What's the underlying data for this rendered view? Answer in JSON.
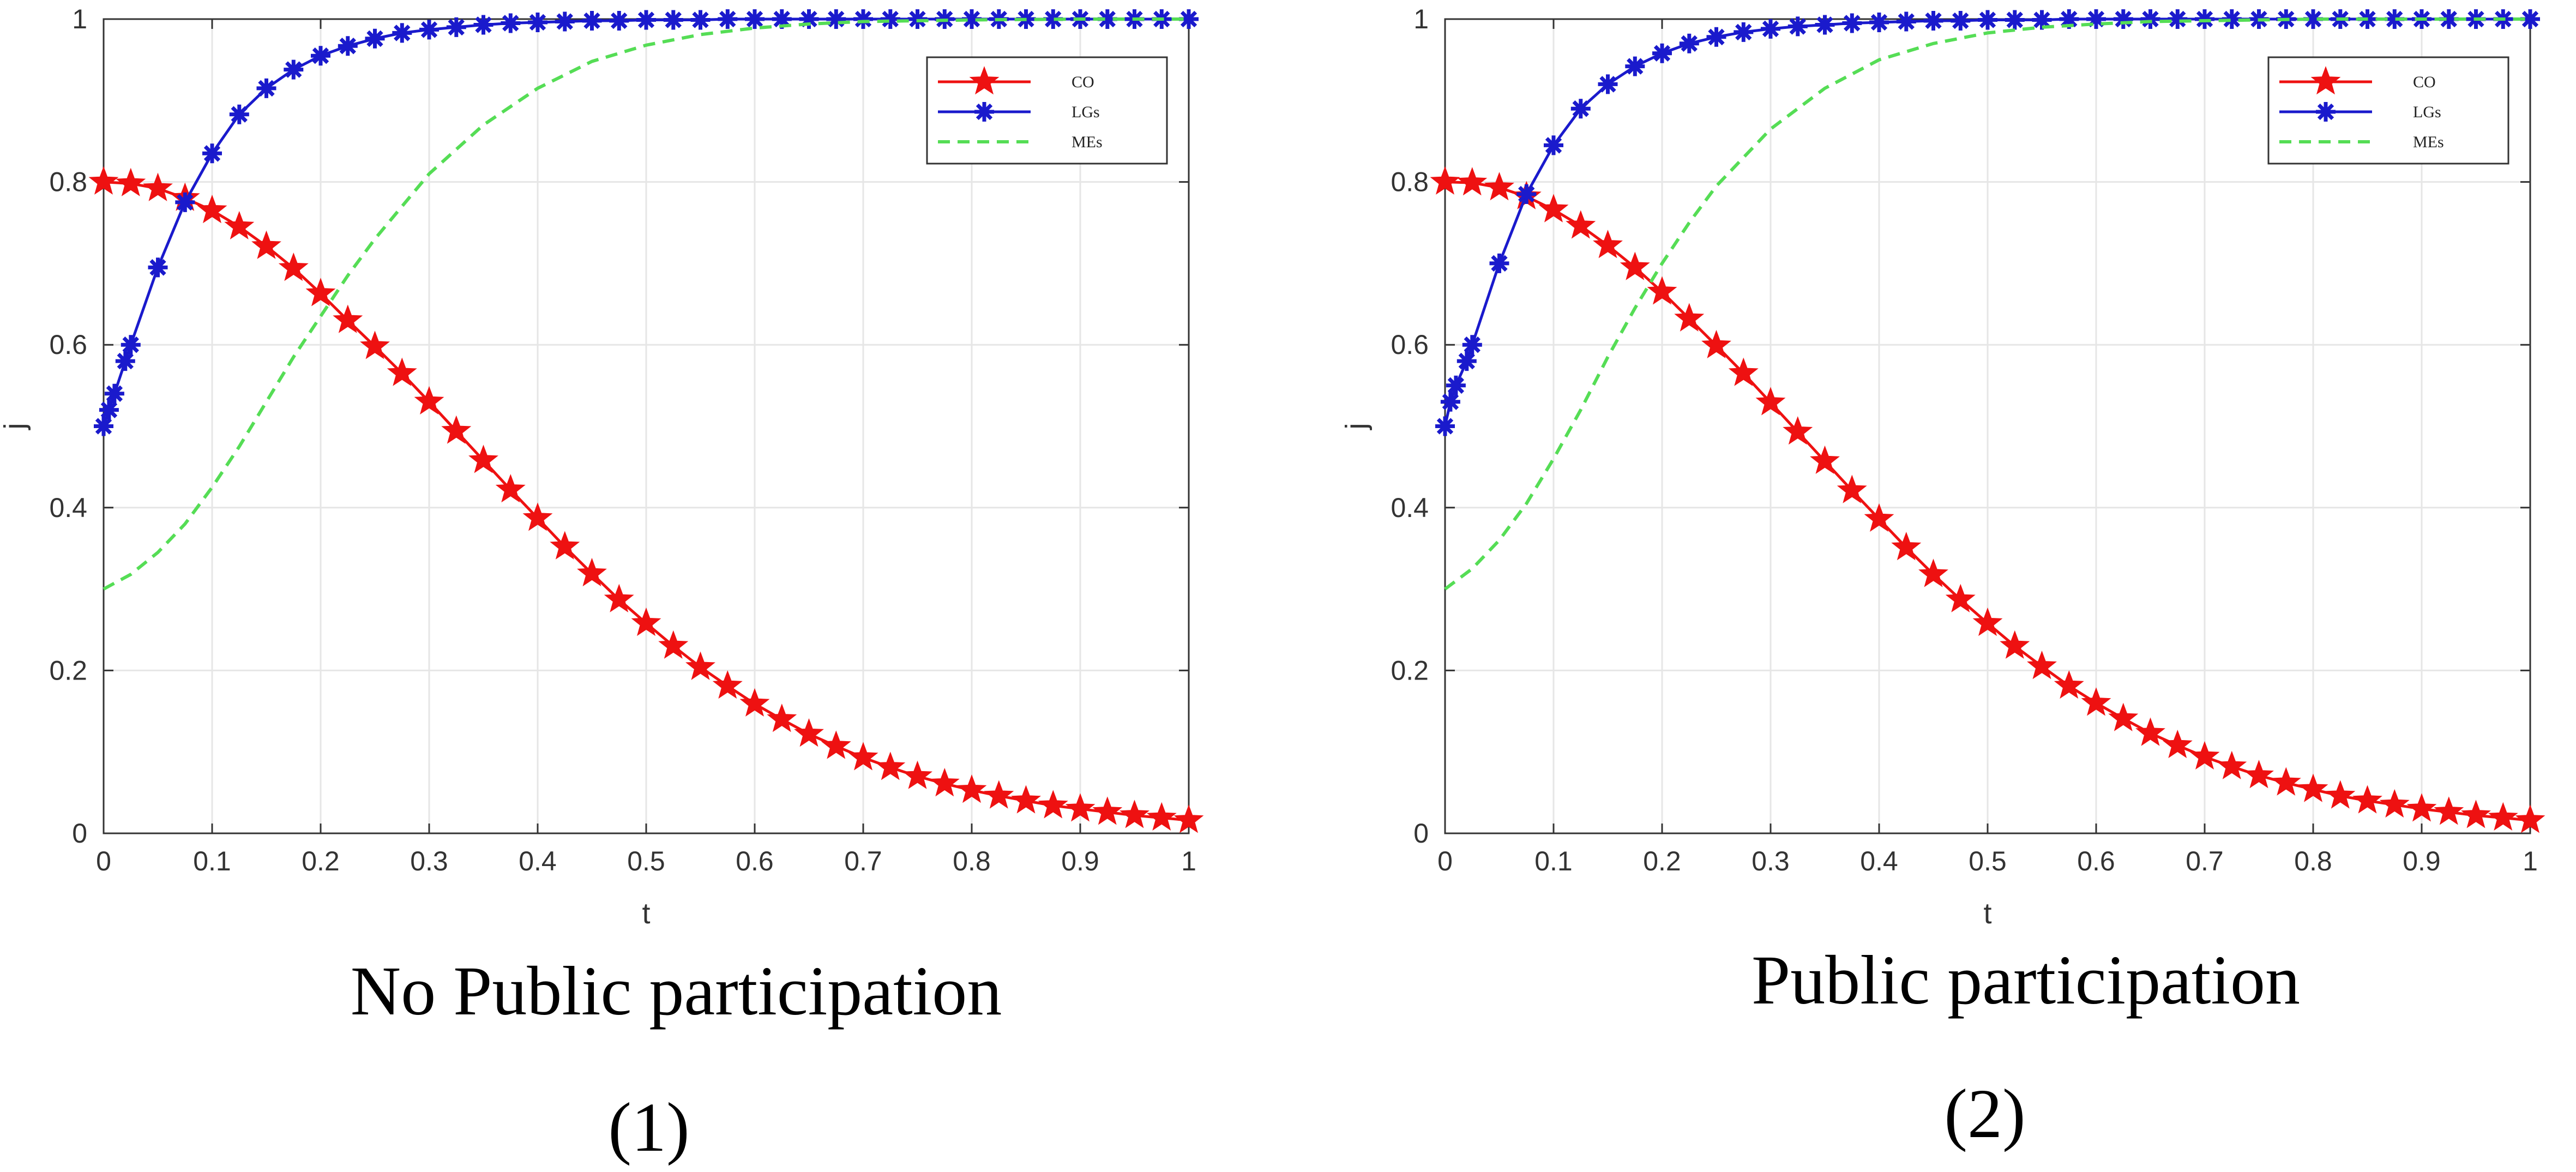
{
  "colors": {
    "CO": "#ee1111",
    "LGs": "#1a1acc",
    "MEs": "#55dd55"
  },
  "chart_data": [
    {
      "type": "line",
      "caption": "No Public participation",
      "number": "(1)",
      "xlabel": "t",
      "ylabel": "j",
      "xlim": [
        0,
        1
      ],
      "ylim": [
        0,
        1
      ],
      "xticks": [
        "0",
        "0.1",
        "0.2",
        "0.3",
        "0.4",
        "0.5",
        "0.6",
        "0.7",
        "0.8",
        "0.9",
        "1"
      ],
      "yticks": [
        "0",
        "0.2",
        "0.4",
        "0.6",
        "0.8",
        "1"
      ],
      "grid": true,
      "legend_position": "top-right",
      "series": [
        {
          "name": "CO",
          "style": "solid-star",
          "color": "#ee1111",
          "x": [
            0,
            0.025,
            0.05,
            0.075,
            0.1,
            0.125,
            0.15,
            0.175,
            0.2,
            0.225,
            0.25,
            0.275,
            0.3,
            0.325,
            0.35,
            0.375,
            0.4,
            0.425,
            0.45,
            0.475,
            0.5,
            0.525,
            0.55,
            0.575,
            0.6,
            0.625,
            0.65,
            0.675,
            0.7,
            0.725,
            0.75,
            0.775,
            0.8,
            0.825,
            0.85,
            0.875,
            0.9,
            0.925,
            0.95,
            0.975,
            1.0
          ],
          "values": [
            0.8,
            0.798,
            0.792,
            0.78,
            0.765,
            0.745,
            0.721,
            0.694,
            0.663,
            0.63,
            0.598,
            0.565,
            0.53,
            0.494,
            0.458,
            0.422,
            0.387,
            0.352,
            0.319,
            0.287,
            0.258,
            0.23,
            0.204,
            0.181,
            0.159,
            0.14,
            0.122,
            0.107,
            0.093,
            0.081,
            0.07,
            0.061,
            0.053,
            0.046,
            0.04,
            0.034,
            0.03,
            0.026,
            0.022,
            0.019,
            0.016
          ]
        },
        {
          "name": "LGs",
          "style": "solid-asterisk",
          "color": "#1a1acc",
          "x": [
            0,
            0.005,
            0.01,
            0.02,
            0.025,
            0.05,
            0.075,
            0.1,
            0.125,
            0.15,
            0.175,
            0.2,
            0.225,
            0.25,
            0.275,
            0.3,
            0.325,
            0.35,
            0.375,
            0.4,
            0.425,
            0.45,
            0.475,
            0.5,
            0.525,
            0.55,
            0.575,
            0.6,
            0.625,
            0.65,
            0.675,
            0.7,
            0.725,
            0.75,
            0.775,
            0.8,
            0.825,
            0.85,
            0.875,
            0.9,
            0.925,
            0.95,
            0.975,
            1.0
          ],
          "values": [
            0.5,
            0.52,
            0.54,
            0.58,
            0.6,
            0.695,
            0.775,
            0.835,
            0.883,
            0.915,
            0.938,
            0.955,
            0.967,
            0.976,
            0.983,
            0.987,
            0.99,
            0.993,
            0.995,
            0.996,
            0.997,
            0.998,
            0.998,
            0.999,
            0.999,
            0.999,
            1.0,
            1.0,
            1.0,
            1.0,
            1.0,
            1.0,
            1.0,
            1.0,
            1.0,
            1.0,
            1.0,
            1.0,
            1.0,
            1.0,
            1.0,
            1.0,
            1.0,
            1.0
          ]
        },
        {
          "name": "MEs",
          "style": "dashed",
          "color": "#55dd55",
          "x": [
            0,
            0.025,
            0.05,
            0.075,
            0.1,
            0.125,
            0.15,
            0.175,
            0.2,
            0.225,
            0.25,
            0.3,
            0.35,
            0.4,
            0.45,
            0.5,
            0.55,
            0.6,
            0.65,
            0.7,
            0.75,
            0.8,
            0.9,
            1.0
          ],
          "values": [
            0.3,
            0.318,
            0.345,
            0.38,
            0.425,
            0.475,
            0.53,
            0.585,
            0.635,
            0.685,
            0.73,
            0.81,
            0.87,
            0.915,
            0.948,
            0.968,
            0.981,
            0.989,
            0.994,
            0.997,
            0.998,
            0.999,
            1.0,
            1.0
          ]
        }
      ]
    },
    {
      "type": "line",
      "caption": "Public participation",
      "number": "(2)",
      "xlabel": "t",
      "ylabel": "j",
      "xlim": [
        0,
        1
      ],
      "ylim": [
        0,
        1
      ],
      "xticks": [
        "0",
        "0.1",
        "0.2",
        "0.3",
        "0.4",
        "0.5",
        "0.6",
        "0.7",
        "0.8",
        "0.9",
        "1"
      ],
      "yticks": [
        "0",
        "0.2",
        "0.4",
        "0.6",
        "0.8",
        "1"
      ],
      "grid": true,
      "legend_position": "top-right",
      "series": [
        {
          "name": "CO",
          "style": "solid-star",
          "color": "#ee1111",
          "x": [
            0,
            0.025,
            0.05,
            0.075,
            0.1,
            0.125,
            0.15,
            0.175,
            0.2,
            0.225,
            0.25,
            0.275,
            0.3,
            0.325,
            0.35,
            0.375,
            0.4,
            0.425,
            0.45,
            0.475,
            0.5,
            0.525,
            0.55,
            0.575,
            0.6,
            0.625,
            0.65,
            0.675,
            0.7,
            0.725,
            0.75,
            0.775,
            0.8,
            0.825,
            0.85,
            0.875,
            0.9,
            0.925,
            0.95,
            0.975,
            1.0
          ],
          "values": [
            0.8,
            0.799,
            0.793,
            0.782,
            0.766,
            0.746,
            0.722,
            0.695,
            0.665,
            0.632,
            0.599,
            0.565,
            0.529,
            0.493,
            0.457,
            0.421,
            0.386,
            0.351,
            0.318,
            0.287,
            0.258,
            0.23,
            0.205,
            0.181,
            0.16,
            0.141,
            0.123,
            0.108,
            0.094,
            0.082,
            0.071,
            0.062,
            0.054,
            0.046,
            0.04,
            0.035,
            0.03,
            0.026,
            0.022,
            0.019,
            0.016
          ]
        },
        {
          "name": "LGs",
          "style": "solid-asterisk",
          "color": "#1a1acc",
          "x": [
            0,
            0.005,
            0.01,
            0.02,
            0.025,
            0.05,
            0.075,
            0.1,
            0.125,
            0.15,
            0.175,
            0.2,
            0.225,
            0.25,
            0.275,
            0.3,
            0.325,
            0.35,
            0.375,
            0.4,
            0.425,
            0.45,
            0.475,
            0.5,
            0.525,
            0.55,
            0.575,
            0.6,
            0.625,
            0.65,
            0.675,
            0.7,
            0.725,
            0.75,
            0.775,
            0.8,
            0.825,
            0.85,
            0.875,
            0.9,
            0.925,
            0.95,
            0.975,
            1.0
          ],
          "values": [
            0.5,
            0.53,
            0.55,
            0.58,
            0.6,
            0.7,
            0.785,
            0.845,
            0.89,
            0.92,
            0.942,
            0.958,
            0.97,
            0.978,
            0.984,
            0.988,
            0.991,
            0.993,
            0.995,
            0.996,
            0.997,
            0.998,
            0.998,
            0.999,
            0.999,
            0.999,
            1.0,
            1.0,
            1.0,
            1.0,
            1.0,
            1.0,
            1.0,
            1.0,
            1.0,
            1.0,
            1.0,
            1.0,
            1.0,
            1.0,
            1.0,
            1.0,
            1.0,
            1.0
          ]
        },
        {
          "name": "MEs",
          "style": "dashed",
          "color": "#55dd55",
          "x": [
            0,
            0.025,
            0.05,
            0.075,
            0.1,
            0.125,
            0.15,
            0.175,
            0.2,
            0.225,
            0.25,
            0.3,
            0.35,
            0.4,
            0.45,
            0.5,
            0.55,
            0.6,
            0.65,
            0.7,
            0.75,
            0.8,
            0.9,
            1.0
          ],
          "values": [
            0.3,
            0.325,
            0.36,
            0.405,
            0.46,
            0.52,
            0.585,
            0.645,
            0.7,
            0.75,
            0.795,
            0.865,
            0.915,
            0.95,
            0.97,
            0.983,
            0.99,
            0.994,
            0.997,
            0.998,
            0.999,
            1.0,
            1.0,
            1.0
          ]
        }
      ]
    }
  ]
}
